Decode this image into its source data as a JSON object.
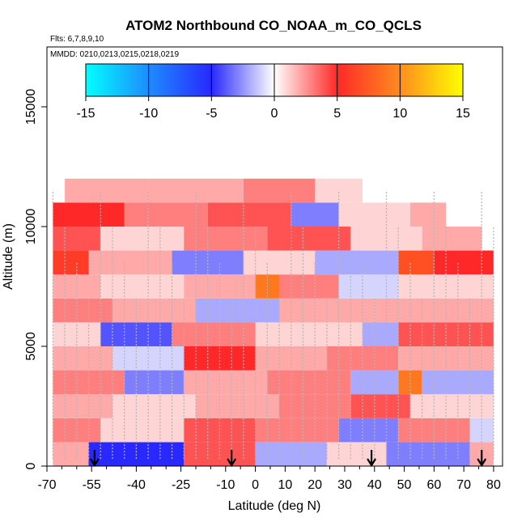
{
  "chart_data": {
    "type": "heatmap",
    "title": "ATOM2 Northbound CO_NOAA_m_CO_QCLS",
    "flights_note": "Flts: 6,7,8,9,10",
    "dates_note": "MMDD: 0210,0213,0215,0218,0219",
    "xlabel": "Latitude (deg N)",
    "ylabel": "Altitude (m)",
    "xlim": [
      -70,
      83
    ],
    "ylim": [
      0,
      17500
    ],
    "x_ticks": [
      -70,
      -55,
      -40,
      -25,
      -10,
      0,
      10,
      20,
      30,
      40,
      50,
      60,
      70,
      80
    ],
    "x_tick_labels": [
      "-70",
      "-55",
      "-40",
      "-25",
      "-10",
      "0",
      "10",
      "20",
      "30",
      "40",
      "50",
      "60",
      "70",
      "80"
    ],
    "x_minor_ticks": [
      -65,
      -60,
      -50,
      -45,
      -35,
      -30,
      -20,
      -15,
      -5,
      5,
      15,
      25,
      35,
      45,
      55,
      65,
      75
    ],
    "y_ticks": [
      0,
      5000,
      10000,
      15000
    ],
    "y_tick_labels": [
      "0",
      "5000",
      "10000",
      "15000"
    ],
    "colorbar": {
      "range": [
        -15,
        15
      ],
      "ticks": [
        -15,
        -10,
        -5,
        0,
        5,
        10,
        15
      ],
      "tick_labels": [
        "-15",
        "-10",
        "-5",
        "0",
        "5",
        "10",
        "15"
      ],
      "stops": [
        {
          "value": -15,
          "color": "#00ffff"
        },
        {
          "value": -10,
          "color": "#1e8cff"
        },
        {
          "value": -5,
          "color": "#2828ff"
        },
        {
          "value": 0,
          "color": "#ffffff"
        },
        {
          "value": 5,
          "color": "#ff2828"
        },
        {
          "value": 10,
          "color": "#ff8c1e"
        },
        {
          "value": 15,
          "color": "#ffff00"
        }
      ]
    },
    "profile_arrows_lat": [
      -54,
      -8,
      39,
      76
    ],
    "lat_bins": [
      -68,
      -64,
      -60,
      -56,
      -52,
      -48,
      -44,
      -40,
      -36,
      -32,
      -28,
      -24,
      -20,
      -16,
      -12,
      -8,
      -4,
      0,
      4,
      8,
      12,
      16,
      20,
      24,
      28,
      32,
      36,
      40,
      44,
      48,
      52,
      56,
      60,
      64,
      68,
      72,
      76,
      80
    ],
    "alt_bins": [
      500,
      1500,
      2500,
      3500,
      4500,
      5500,
      6500,
      7500,
      8500,
      9500,
      10500,
      11500
    ],
    "cells": [
      {
        "alt": 500,
        "lat_from": -68,
        "lat_to": -56,
        "value": 2
      },
      {
        "alt": 500,
        "lat_from": -56,
        "lat_to": -24,
        "value": -5
      },
      {
        "alt": 500,
        "lat_from": -24,
        "lat_to": 0,
        "value": 4
      },
      {
        "alt": 500,
        "lat_from": 0,
        "lat_to": 24,
        "value": -2
      },
      {
        "alt": 500,
        "lat_from": 24,
        "lat_to": 44,
        "value": 1
      },
      {
        "alt": 500,
        "lat_from": 44,
        "lat_to": 72,
        "value": -3
      },
      {
        "alt": 500,
        "lat_from": 72,
        "lat_to": 80,
        "value": 2
      },
      {
        "alt": 1500,
        "lat_from": -68,
        "lat_to": -52,
        "value": 3
      },
      {
        "alt": 1500,
        "lat_from": -52,
        "lat_to": -24,
        "value": 1
      },
      {
        "alt": 1500,
        "lat_from": -24,
        "lat_to": 0,
        "value": 4
      },
      {
        "alt": 1500,
        "lat_from": 0,
        "lat_to": 28,
        "value": 3
      },
      {
        "alt": 1500,
        "lat_from": 28,
        "lat_to": 48,
        "value": -3
      },
      {
        "alt": 1500,
        "lat_from": 48,
        "lat_to": 72,
        "value": 3
      },
      {
        "alt": 1500,
        "lat_from": 72,
        "lat_to": 80,
        "value": -1
      },
      {
        "alt": 2500,
        "lat_from": -68,
        "lat_to": -48,
        "value": 2
      },
      {
        "alt": 2500,
        "lat_from": -48,
        "lat_to": -20,
        "value": 1
      },
      {
        "alt": 2500,
        "lat_from": -20,
        "lat_to": 8,
        "value": 2
      },
      {
        "alt": 2500,
        "lat_from": 8,
        "lat_to": 32,
        "value": 3
      },
      {
        "alt": 2500,
        "lat_from": 32,
        "lat_to": 52,
        "value": 4
      },
      {
        "alt": 2500,
        "lat_from": 52,
        "lat_to": 80,
        "value": 1
      },
      {
        "alt": 3500,
        "lat_from": -68,
        "lat_to": -44,
        "value": 3
      },
      {
        "alt": 3500,
        "lat_from": -44,
        "lat_to": -24,
        "value": -3
      },
      {
        "alt": 3500,
        "lat_from": -24,
        "lat_to": 4,
        "value": 2
      },
      {
        "alt": 3500,
        "lat_from": 4,
        "lat_to": 32,
        "value": 3
      },
      {
        "alt": 3500,
        "lat_from": 32,
        "lat_to": 48,
        "value": -2
      },
      {
        "alt": 3500,
        "lat_from": 48,
        "lat_to": 56,
        "value": 9
      },
      {
        "alt": 3500,
        "lat_from": 56,
        "lat_to": 80,
        "value": -2
      },
      {
        "alt": 4500,
        "lat_from": -68,
        "lat_to": -48,
        "value": 2
      },
      {
        "alt": 4500,
        "lat_from": -48,
        "lat_to": -24,
        "value": -1
      },
      {
        "alt": 4500,
        "lat_from": -24,
        "lat_to": 0,
        "value": 5
      },
      {
        "alt": 4500,
        "lat_from": 0,
        "lat_to": 24,
        "value": 2
      },
      {
        "alt": 4500,
        "lat_from": 24,
        "lat_to": 48,
        "value": 3
      },
      {
        "alt": 4500,
        "lat_from": 48,
        "lat_to": 80,
        "value": 2
      },
      {
        "alt": 5500,
        "lat_from": -68,
        "lat_to": -52,
        "value": 1
      },
      {
        "alt": 5500,
        "lat_from": -52,
        "lat_to": -28,
        "value": -4
      },
      {
        "alt": 5500,
        "lat_from": -28,
        "lat_to": 0,
        "value": 3
      },
      {
        "alt": 5500,
        "lat_from": 0,
        "lat_to": 36,
        "value": 1
      },
      {
        "alt": 5500,
        "lat_from": 36,
        "lat_to": 48,
        "value": -2
      },
      {
        "alt": 5500,
        "lat_from": 48,
        "lat_to": 80,
        "value": 4
      },
      {
        "alt": 6500,
        "lat_from": -68,
        "lat_to": -48,
        "value": 3
      },
      {
        "alt": 6500,
        "lat_from": -48,
        "lat_to": -20,
        "value": 2
      },
      {
        "alt": 6500,
        "lat_from": -20,
        "lat_to": 8,
        "value": -2
      },
      {
        "alt": 6500,
        "lat_from": 8,
        "lat_to": 40,
        "value": 2
      },
      {
        "alt": 6500,
        "lat_from": 40,
        "lat_to": 80,
        "value": 2
      },
      {
        "alt": 7500,
        "lat_from": -68,
        "lat_to": -52,
        "value": 2
      },
      {
        "alt": 7500,
        "lat_from": -52,
        "lat_to": -24,
        "value": 1
      },
      {
        "alt": 7500,
        "lat_from": -24,
        "lat_to": 0,
        "value": 2
      },
      {
        "alt": 7500,
        "lat_from": 0,
        "lat_to": 8,
        "value": 9
      },
      {
        "alt": 7500,
        "lat_from": 8,
        "lat_to": 28,
        "value": 3
      },
      {
        "alt": 7500,
        "lat_from": 28,
        "lat_to": 48,
        "value": -1
      },
      {
        "alt": 7500,
        "lat_from": 48,
        "lat_to": 80,
        "value": 1
      },
      {
        "alt": 8500,
        "lat_from": -68,
        "lat_to": -56,
        "value": 6
      },
      {
        "alt": 8500,
        "lat_from": -56,
        "lat_to": -28,
        "value": 2
      },
      {
        "alt": 8500,
        "lat_from": -28,
        "lat_to": -4,
        "value": -3
      },
      {
        "alt": 8500,
        "lat_from": -4,
        "lat_to": 20,
        "value": 1
      },
      {
        "alt": 8500,
        "lat_from": 20,
        "lat_to": 48,
        "value": -2
      },
      {
        "alt": 8500,
        "lat_from": 48,
        "lat_to": 60,
        "value": 7
      },
      {
        "alt": 8500,
        "lat_from": 60,
        "lat_to": 80,
        "value": 5
      },
      {
        "alt": 9500,
        "lat_from": -68,
        "lat_to": -52,
        "value": 4
      },
      {
        "alt": 9500,
        "lat_from": -52,
        "lat_to": -24,
        "value": 1
      },
      {
        "alt": 9500,
        "lat_from": -24,
        "lat_to": 4,
        "value": 3
      },
      {
        "alt": 9500,
        "lat_from": 4,
        "lat_to": 32,
        "value": 4
      },
      {
        "alt": 9500,
        "lat_from": 32,
        "lat_to": 56,
        "value": 1
      },
      {
        "alt": 9500,
        "lat_from": 56,
        "lat_to": 76,
        "value": 2
      },
      {
        "alt": 10500,
        "lat_from": -68,
        "lat_to": -44,
        "value": 5
      },
      {
        "alt": 10500,
        "lat_from": -44,
        "lat_to": -16,
        "value": 3
      },
      {
        "alt": 10500,
        "lat_from": -16,
        "lat_to": 12,
        "value": 4
      },
      {
        "alt": 10500,
        "lat_from": 12,
        "lat_to": 28,
        "value": -3
      },
      {
        "alt": 10500,
        "lat_from": 28,
        "lat_to": 52,
        "value": 1
      },
      {
        "alt": 10500,
        "lat_from": 52,
        "lat_to": 64,
        "value": 2
      },
      {
        "alt": 11500,
        "lat_from": -64,
        "lat_to": -36,
        "value": 2
      },
      {
        "alt": 11500,
        "lat_from": -36,
        "lat_to": -4,
        "value": 2
      },
      {
        "alt": 11500,
        "lat_from": -4,
        "lat_to": 20,
        "value": 3
      },
      {
        "alt": 11500,
        "lat_from": 20,
        "lat_to": 36,
        "value": 1
      }
    ]
  }
}
